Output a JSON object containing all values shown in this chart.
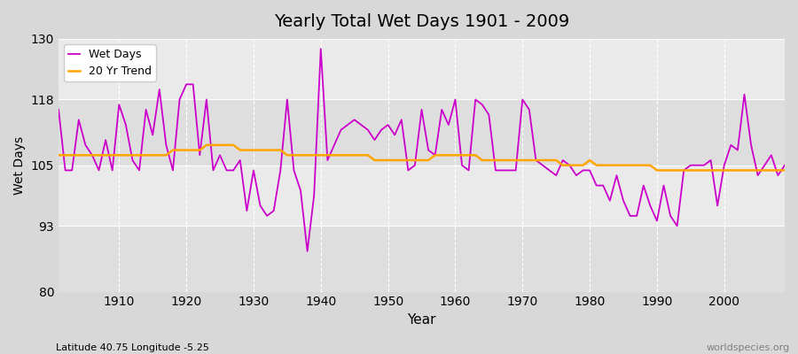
{
  "title": "Yearly Total Wet Days 1901 - 2009",
  "xlabel": "Year",
  "ylabel": "Wet Days",
  "subtitle": "Latitude 40.75 Longitude -5.25",
  "watermark": "worldspecies.org",
  "ylim": [
    80,
    130
  ],
  "yticks": [
    80,
    93,
    105,
    118,
    130
  ],
  "years": [
    1901,
    1902,
    1903,
    1904,
    1905,
    1906,
    1907,
    1908,
    1909,
    1910,
    1911,
    1912,
    1913,
    1914,
    1915,
    1916,
    1917,
    1918,
    1919,
    1920,
    1921,
    1922,
    1923,
    1924,
    1925,
    1926,
    1927,
    1928,
    1929,
    1930,
    1931,
    1932,
    1933,
    1934,
    1935,
    1936,
    1937,
    1938,
    1939,
    1940,
    1941,
    1942,
    1943,
    1944,
    1945,
    1946,
    1947,
    1948,
    1949,
    1950,
    1951,
    1952,
    1953,
    1954,
    1955,
    1956,
    1957,
    1958,
    1959,
    1960,
    1961,
    1962,
    1963,
    1964,
    1965,
    1966,
    1967,
    1968,
    1969,
    1970,
    1971,
    1972,
    1973,
    1974,
    1975,
    1976,
    1977,
    1978,
    1979,
    1980,
    1981,
    1982,
    1983,
    1984,
    1985,
    1986,
    1987,
    1988,
    1989,
    1990,
    1991,
    1992,
    1993,
    1994,
    1995,
    1996,
    1997,
    1998,
    1999,
    2000,
    2001,
    2002,
    2003,
    2004,
    2005,
    2006,
    2007,
    2008,
    2009
  ],
  "wet_days": [
    116,
    104,
    104,
    114,
    109,
    107,
    104,
    110,
    104,
    117,
    113,
    106,
    104,
    116,
    111,
    120,
    109,
    104,
    118,
    121,
    121,
    107,
    118,
    104,
    107,
    104,
    104,
    106,
    96,
    104,
    97,
    95,
    96,
    104,
    118,
    104,
    100,
    88,
    99,
    128,
    106,
    109,
    112,
    113,
    114,
    113,
    112,
    110,
    112,
    113,
    111,
    114,
    104,
    105,
    116,
    108,
    107,
    116,
    113,
    118,
    105,
    104,
    118,
    117,
    115,
    104,
    104,
    104,
    104,
    118,
    116,
    106,
    105,
    104,
    103,
    106,
    105,
    103,
    104,
    104,
    101,
    101,
    98,
    103,
    98,
    95,
    95,
    101,
    97,
    94,
    101,
    95,
    93,
    104,
    105,
    105,
    105,
    106,
    97,
    105,
    109,
    108,
    119,
    109,
    103,
    105,
    107,
    103,
    105
  ],
  "trend": [
    107,
    107,
    107,
    107,
    107,
    107,
    107,
    107,
    107,
    107,
    107,
    107,
    107,
    107,
    107,
    107,
    107,
    108,
    108,
    108,
    108,
    108,
    109,
    109,
    109,
    109,
    109,
    108,
    108,
    108,
    108,
    108,
    108,
    108,
    107,
    107,
    107,
    107,
    107,
    107,
    107,
    107,
    107,
    107,
    107,
    107,
    107,
    106,
    106,
    106,
    106,
    106,
    106,
    106,
    106,
    106,
    107,
    107,
    107,
    107,
    107,
    107,
    107,
    106,
    106,
    106,
    106,
    106,
    106,
    106,
    106,
    106,
    106,
    106,
    106,
    105,
    105,
    105,
    105,
    106,
    105,
    105,
    105,
    105,
    105,
    105,
    105,
    105,
    105,
    104,
    104,
    104,
    104,
    104,
    104,
    104,
    104,
    104,
    104,
    104,
    104,
    104,
    104,
    104,
    104,
    104,
    104,
    104,
    104
  ],
  "wet_days_color": "#CC00CC",
  "trend_color": "#FFA500",
  "bg_color": "#D8D8D8",
  "plot_bg_color_light": "#EAEAEA",
  "plot_bg_color_dark": "#DEDEDE",
  "grid_color": "#FFFFFF",
  "xticks": [
    1910,
    1920,
    1930,
    1940,
    1950,
    1960,
    1970,
    1980,
    1990,
    2000
  ]
}
